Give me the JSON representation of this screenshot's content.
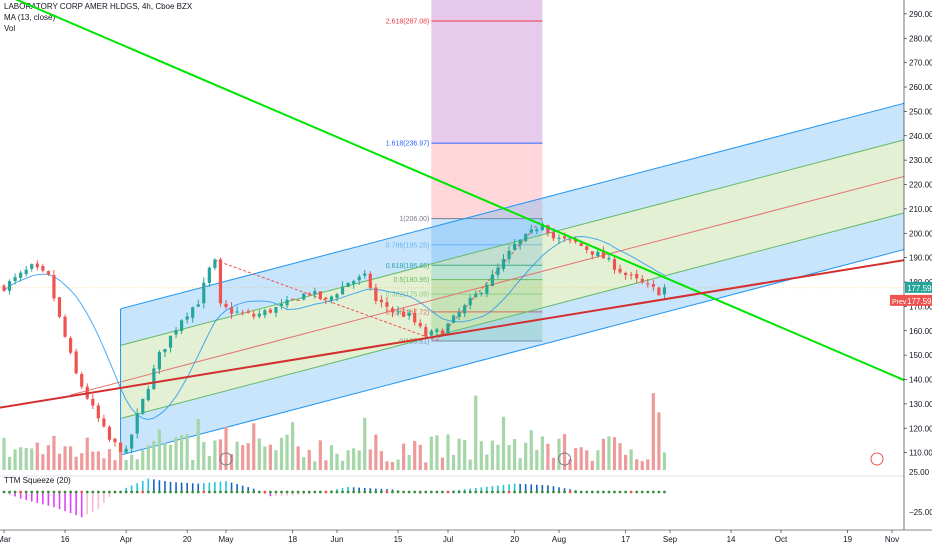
{
  "header": {
    "symbol_line": "LABORATORY CORP AMER HLDGS, 4h, Cboe BZX",
    "ma_line": "MA (13, close)",
    "vol_line": "Vol",
    "squeeze_line": "TTM Squeeze (20)"
  },
  "chart_data": {
    "type": "candlestick",
    "title": "LABORATORY CORP AMER HLDGS, 4h, Cboe BZX",
    "price_axis": {
      "ylim": [
        100,
        292
      ],
      "ticks": [
        110,
        120,
        130,
        140,
        150,
        160,
        170,
        180,
        190,
        200,
        210,
        220,
        230,
        240,
        250,
        260,
        270,
        280,
        290
      ],
      "last_price_label": "177.59",
      "prev_label": "Prev",
      "prev_value": "177.59",
      "colors": {
        "up": "#26a69a",
        "down": "#ef5350",
        "last": "#26a69a",
        "prev": "#ef5350"
      }
    },
    "x_axis": {
      "labels": [
        "Mar",
        "16",
        "Apr",
        "20",
        "May",
        "18",
        "Jun",
        "15",
        "Jul",
        "20",
        "Aug",
        "17",
        "Sep",
        "14",
        "Oct",
        "19",
        "Nov"
      ],
      "index": [
        0,
        11,
        22,
        33,
        40,
        52,
        60,
        71,
        80,
        92,
        100,
        112,
        120,
        131,
        140,
        152,
        160
      ],
      "total_bars": 165
    },
    "candles": {
      "key_points": [
        [
          0,
          178
        ],
        [
          5,
          186
        ],
        [
          8,
          182
        ],
        [
          10,
          165
        ],
        [
          13,
          142
        ],
        [
          16,
          128
        ],
        [
          19,
          115
        ],
        [
          22,
          110
        ],
        [
          24,
          125
        ],
        [
          28,
          150
        ],
        [
          32,
          165
        ],
        [
          35,
          172
        ],
        [
          37,
          185
        ],
        [
          38,
          188
        ],
        [
          39,
          170
        ],
        [
          41,
          168
        ],
        [
          45,
          166
        ],
        [
          50,
          170
        ],
        [
          55,
          176
        ],
        [
          58,
          172
        ],
        [
          62,
          180
        ],
        [
          65,
          182
        ],
        [
          66,
          178
        ],
        [
          67,
          172
        ],
        [
          69,
          170
        ],
        [
          70,
          168
        ],
        [
          73,
          166
        ],
        [
          76,
          158
        ],
        [
          79,
          160
        ],
        [
          84,
          172
        ],
        [
          88,
          182
        ],
        [
          92,
          195
        ],
        [
          95,
          200
        ],
        [
          97,
          205
        ],
        [
          99,
          198
        ],
        [
          103,
          196
        ],
        [
          108,
          190
        ],
        [
          112,
          183
        ],
        [
          116,
          178
        ],
        [
          118,
          176
        ],
        [
          119,
          177.59
        ]
      ]
    },
    "moving_average": {
      "name": "MA (13, close)",
      "color": "#2196f3"
    },
    "volume": {
      "name": "Vol",
      "spikes": [
        [
          85,
          31
        ],
        [
          97,
          14
        ],
        [
          117,
          32
        ],
        [
          118,
          24
        ]
      ],
      "markers": [
        "earnings-icon",
        "earnings-icon",
        "event-icon"
      ]
    },
    "ttm_squeeze": {
      "name": "TTM Squeeze (20)",
      "ylim": [
        -45,
        45
      ],
      "ticks": [
        "25.00",
        "−25.00"
      ],
      "key_points": [
        [
          0,
          0
        ],
        [
          3,
          -8
        ],
        [
          9,
          -18
        ],
        [
          14,
          -30
        ],
        [
          17,
          -20
        ],
        [
          19,
          -6
        ],
        [
          22,
          5
        ],
        [
          26,
          16
        ],
        [
          30,
          12
        ],
        [
          35,
          10
        ],
        [
          40,
          13
        ],
        [
          45,
          4
        ],
        [
          48,
          -5
        ],
        [
          55,
          -3
        ],
        [
          62,
          6
        ],
        [
          70,
          3
        ],
        [
          75,
          -2
        ],
        [
          84,
          4
        ],
        [
          92,
          10
        ],
        [
          98,
          8
        ],
        [
          104,
          1
        ],
        [
          119,
          -1
        ]
      ]
    },
    "fibonacci": {
      "levels": [
        {
          "label": "0(155.81)",
          "value": 155.81
        },
        {
          "label": "0.236(167.72)",
          "value": 167.72
        },
        {
          "label": "0.382(175.09)",
          "value": 175.09
        },
        {
          "label": "0.5(180.95)",
          "value": 180.95
        },
        {
          "label": "0.618(186.86)",
          "value": 186.86
        },
        {
          "label": "0.786(195.28)",
          "value": 195.28
        },
        {
          "label": "1(206.00)",
          "value": 206.0
        },
        {
          "label": "1.618(236.97)",
          "value": 236.97
        },
        {
          "label": "2.618(287.08)",
          "value": 287.08
        }
      ],
      "range_bars": [
        77,
        97
      ]
    },
    "pitchfork": {
      "median_start": [
        21,
        139
      ],
      "median_end": [
        165,
        225
      ],
      "half_width": 30,
      "inner_half_width": 15
    },
    "trend_lines": [
      {
        "name": "green-downtrend",
        "color": "#00e600",
        "start": [
          -2,
          300
        ],
        "end": [
          165,
          137
        ]
      },
      {
        "name": "red-support",
        "color": "#d32f2f",
        "start": [
          -2,
          128
        ],
        "end": [
          165,
          190
        ]
      }
    ],
    "pitchfork_arms": [
      [
        38,
        189
      ],
      [
        78,
        156
      ],
      [
        97,
        206
      ]
    ],
    "colors": {
      "bull": "#26a69a",
      "bear": "#ef5350",
      "volume_up": "#a5d6a7",
      "volume_down": "#ef9a9a"
    }
  }
}
